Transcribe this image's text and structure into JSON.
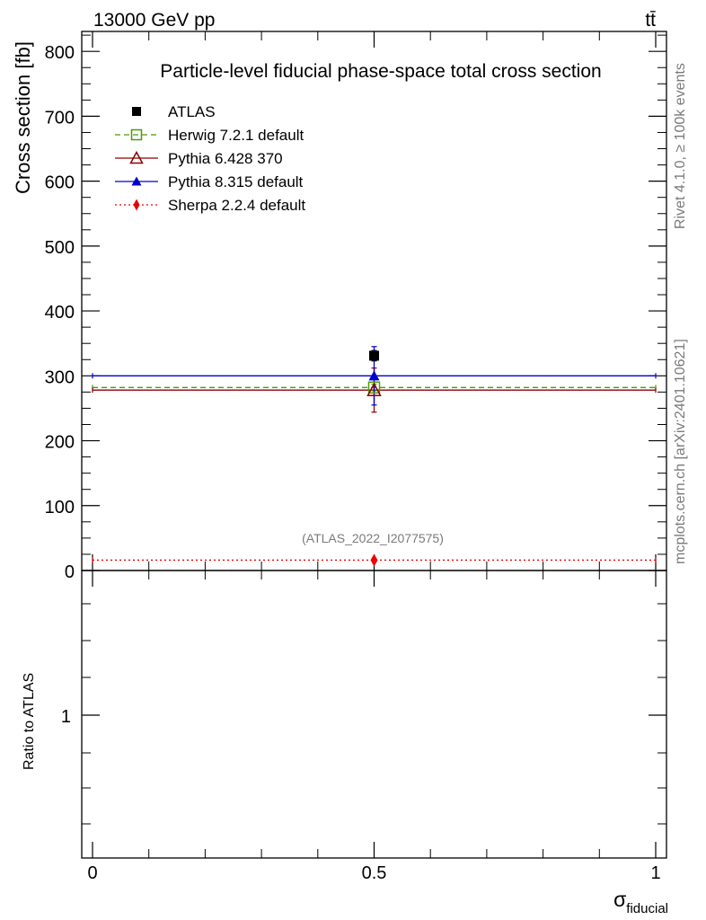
{
  "header": {
    "beam_label": "13000 GeV pp",
    "process_label": "tt̄"
  },
  "side_labels": {
    "rivet": "Rivet 4.1.0, ≥ 100k events",
    "mcplots": "mcplots.cern.ch [arXiv:2401.10621]"
  },
  "analysis_tag": "(ATLAS_2022_I2077575)",
  "chart_data": [
    {
      "type": "scatter",
      "panel": "main",
      "title": "Particle-level fiducial phase-space total cross section",
      "xlabel": "σ_fiducial",
      "xlabel_main": "σ",
      "xlabel_sub": "fiducial",
      "ylabel": "Cross section [fb]",
      "xlim": [
        0,
        1
      ],
      "ylim": [
        0,
        830
      ],
      "x_ticks": [
        "0",
        "0.5",
        "1"
      ],
      "y_ticks": [
        "0",
        "100",
        "200",
        "300",
        "400",
        "500",
        "600",
        "700",
        "800"
      ],
      "grid": false,
      "legend_position": "top-left",
      "series": [
        {
          "name": "ATLAS",
          "x": 0.5,
          "y": 331,
          "yerr": [
            8,
            8
          ],
          "color": "#000000",
          "marker": "filled-square",
          "line": "none"
        },
        {
          "name": "Herwig 7.2.1 default",
          "x": 0.5,
          "y": 282,
          "yerr": [
            5,
            5
          ],
          "color": "#4e9a06",
          "marker": "open-square",
          "line": "dashed"
        },
        {
          "name": "Pythia 6.428 370",
          "x": 0.5,
          "y": 278,
          "yerr": [
            34,
            34
          ],
          "color": "#8b0000",
          "marker": "open-triangle",
          "line": "solid"
        },
        {
          "name": "Pythia 8.315 default",
          "x": 0.5,
          "y": 300,
          "yerr": [
            45,
            45
          ],
          "color": "#0000cc",
          "marker": "filled-triangle",
          "line": "solid"
        },
        {
          "name": "Sherpa 2.2.4 default",
          "x": 0.5,
          "y": 16,
          "yerr": [
            2,
            2
          ],
          "color": "#ee0000",
          "marker": "filled-diamond",
          "line": "dotted"
        }
      ]
    },
    {
      "type": "line",
      "panel": "ratio",
      "ylabel": "Ratio to ATLAS",
      "xlim": [
        0,
        1
      ],
      "y_ticks": [
        "1"
      ],
      "series": []
    }
  ]
}
